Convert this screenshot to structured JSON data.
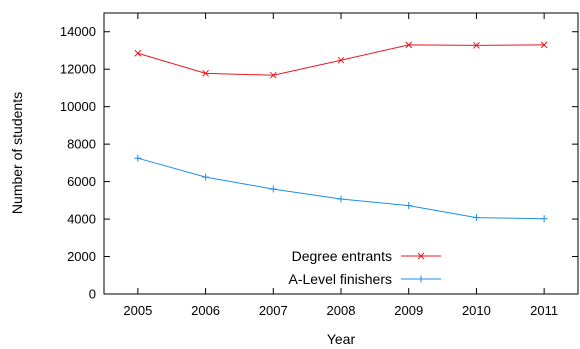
{
  "chart_data": {
    "type": "line",
    "title": "",
    "xlabel": "Year",
    "ylabel": "Number of students",
    "x": [
      2005,
      2006,
      2007,
      2008,
      2009,
      2010,
      2011
    ],
    "x_tick_labels": [
      "2005",
      "2006",
      "2007",
      "2008",
      "2009",
      "2010",
      "2011"
    ],
    "xlim": [
      2004.5,
      2011.5
    ],
    "ylim": [
      0,
      15000
    ],
    "y_ticks": [
      0,
      2000,
      4000,
      6000,
      8000,
      10000,
      12000,
      14000
    ],
    "y_tick_labels": [
      "0",
      "2000",
      "4000",
      "6000",
      "8000",
      "10000",
      "12000",
      "14000"
    ],
    "grid": false,
    "legend_position": "bottom-right",
    "series": [
      {
        "name": "Degree entrants",
        "color": "#e8191f",
        "marker": "x",
        "values": [
          12850,
          11780,
          11680,
          12480,
          13300,
          13270,
          13300
        ]
      },
      {
        "name": "A-Level finishers",
        "color": "#1f8ee6",
        "marker": "+",
        "values": [
          7250,
          6240,
          5600,
          5070,
          4720,
          4080,
          4020
        ]
      }
    ]
  }
}
